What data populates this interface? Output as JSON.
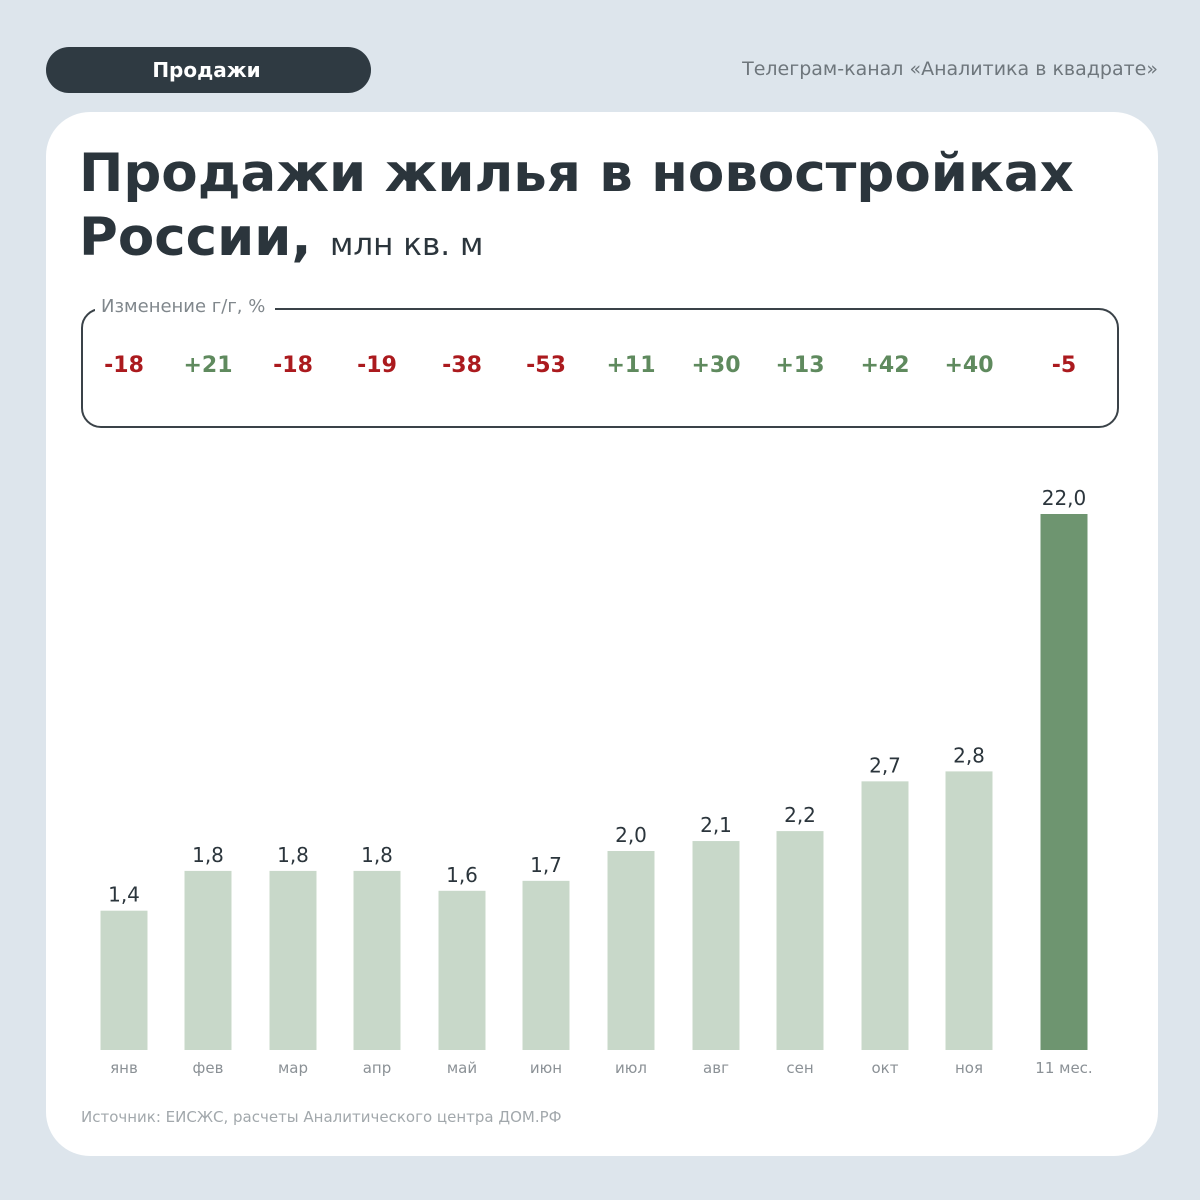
{
  "header": {
    "section_label": "Продажи",
    "channel": "Телеграм-канал «Аналитика в квадрате»"
  },
  "title": {
    "main": "Продажи жилья в новостройках России,",
    "unit": "млн кв. м"
  },
  "yoy": {
    "label": "Изменение г/г, %",
    "values": [
      "-18",
      "+21",
      "-18",
      "-19",
      "-38",
      "-53",
      "+11",
      "+30",
      "+13",
      "+42",
      "+40",
      "-5"
    ]
  },
  "colors": {
    "bar_month": "#c8d8c9",
    "bar_total": "#6e9570",
    "negative": "#ab1a1e",
    "positive": "#5f8a5e",
    "text_dark": "#2b353c"
  },
  "chart_data": {
    "type": "bar",
    "categories": [
      "янв",
      "фев",
      "мар",
      "апр",
      "май",
      "июн",
      "июл",
      "авг",
      "сен",
      "окт",
      "ноя",
      "11 мес."
    ],
    "values": [
      1.4,
      1.8,
      1.8,
      1.8,
      1.6,
      1.7,
      2.0,
      2.1,
      2.2,
      2.7,
      2.8,
      22.0
    ],
    "labels": [
      "1,4",
      "1,8",
      "1,8",
      "1,8",
      "1,6",
      "1,7",
      "2,0",
      "2,1",
      "2,2",
      "2,7",
      "2,8",
      "22,0"
    ],
    "highlight": [
      "11 мес."
    ],
    "grid": false,
    "legend": "none"
  },
  "footer": {
    "source": "Источник: ЕИСЖС, расчеты Аналитического центра ДОМ.РФ"
  }
}
